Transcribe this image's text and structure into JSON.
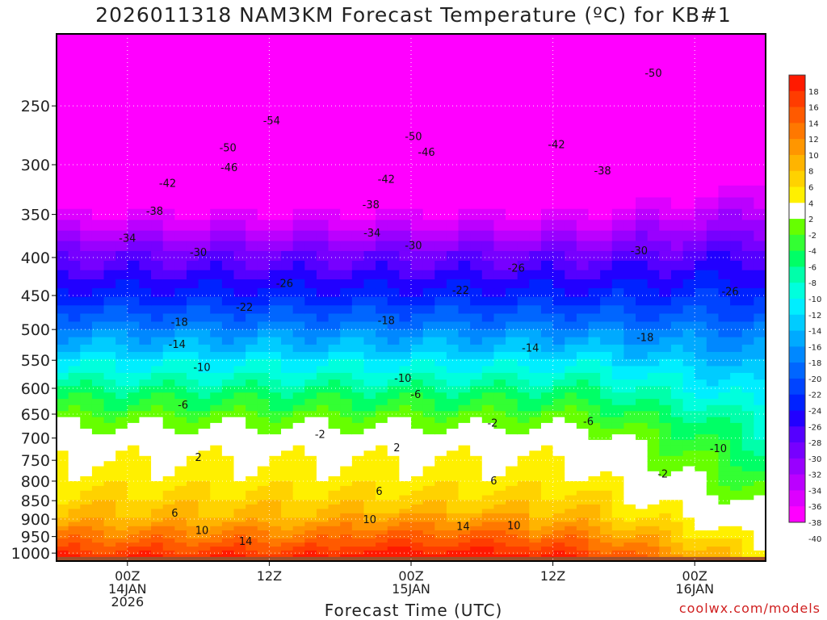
{
  "title": "2026011318 NAM3KM Forecast Temperature (ºC) for KB#1",
  "xaxis_title": "Forecast Time (UTC)",
  "credit": "coolwx.com/models",
  "chart_data": {
    "type": "heatmap",
    "title": "2026011318 NAM3KM Forecast Temperature (ºC) for KB#1",
    "xlabel": "Forecast Time (UTC)",
    "ylabel": "",
    "x_range_hours": [
      0,
      60
    ],
    "y_scale": "log-pressure",
    "ylim": [
      1025,
      200
    ],
    "x_ticks": [
      {
        "hour": 6,
        "lines": [
          "00Z",
          "14JAN",
          "2026"
        ]
      },
      {
        "hour": 18,
        "lines": [
          "12Z"
        ]
      },
      {
        "hour": 30,
        "lines": [
          "00Z",
          "15JAN"
        ]
      },
      {
        "hour": 42,
        "lines": [
          "12Z"
        ]
      },
      {
        "hour": 54,
        "lines": [
          "00Z",
          "16JAN"
        ]
      }
    ],
    "y_ticks": [
      250,
      300,
      350,
      400,
      450,
      500,
      550,
      600,
      650,
      700,
      750,
      800,
      850,
      900,
      950,
      1000
    ],
    "grid": true,
    "colorbar_labels": [
      18,
      16,
      14,
      12,
      10,
      8,
      6,
      4,
      2,
      -2,
      -4,
      -6,
      -8,
      -10,
      -12,
      -14,
      -16,
      -18,
      -20,
      -22,
      -24,
      -26,
      -28,
      -30,
      -32,
      -34,
      -36,
      -38,
      -40
    ],
    "colorbar_colors": [
      "#ff1a00",
      "#ff3c00",
      "#ff5a00",
      "#ff7800",
      "#ff9600",
      "#ffb400",
      "#ffd200",
      "#fff000",
      "#ffffff",
      "#66ff00",
      "#33ff33",
      "#00ff66",
      "#00ffaa",
      "#00ffdd",
      "#00eeff",
      "#00ccff",
      "#00aaff",
      "#0088ff",
      "#0066ff",
      "#0044ff",
      "#0022ff",
      "#2200ff",
      "#5500ff",
      "#7700ff",
      "#9900ff",
      "#bb00ff",
      "#dd00ff",
      "#ff00ff"
    ],
    "freezing_line_color": "#e0207a",
    "ground_color": "#a0522d",
    "level_temperature_profile": {
      "pressures": [
        200,
        250,
        300,
        350,
        400,
        450,
        500,
        550,
        600,
        650,
        700,
        750,
        800,
        850,
        900,
        950,
        1000
      ],
      "temperature_initial": [
        -57,
        -53,
        -47,
        -38,
        -30,
        -25,
        -19,
        -13,
        -8,
        -4,
        0,
        2,
        3,
        5,
        7,
        11,
        15
      ],
      "temperature_final": [
        -52,
        -47,
        -40,
        -34,
        -28,
        -24,
        -20,
        -17,
        -14,
        -11,
        -9,
        -7,
        -5,
        -3,
        -1,
        1,
        3
      ]
    },
    "contour_labels": [
      {
        "value": "-54",
        "hour": 18.2,
        "p": 262
      },
      {
        "value": "-50",
        "hour": 14.5,
        "p": 285
      },
      {
        "value": "-50",
        "hour": 30.2,
        "p": 275
      },
      {
        "value": "-50",
        "hour": 50.5,
        "p": 226
      },
      {
        "value": "-46",
        "hour": 14.6,
        "p": 303
      },
      {
        "value": "-46",
        "hour": 31.3,
        "p": 289
      },
      {
        "value": "-42",
        "hour": 9.4,
        "p": 318
      },
      {
        "value": "-42",
        "hour": 27.9,
        "p": 314
      },
      {
        "value": "-42",
        "hour": 42.3,
        "p": 282
      },
      {
        "value": "-38",
        "hour": 8.3,
        "p": 347
      },
      {
        "value": "-38",
        "hour": 26.6,
        "p": 340
      },
      {
        "value": "-38",
        "hour": 46.2,
        "p": 306
      },
      {
        "value": "-34",
        "hour": 6.0,
        "p": 377
      },
      {
        "value": "-34",
        "hour": 26.7,
        "p": 371
      },
      {
        "value": "-30",
        "hour": 12.0,
        "p": 394
      },
      {
        "value": "-30",
        "hour": 30.2,
        "p": 386
      },
      {
        "value": "-30",
        "hour": 49.3,
        "p": 392
      },
      {
        "value": "-26",
        "hour": 19.3,
        "p": 434
      },
      {
        "value": "-26",
        "hour": 38.9,
        "p": 414
      },
      {
        "value": "-26",
        "hour": 57.0,
        "p": 445
      },
      {
        "value": "-22",
        "hour": 15.9,
        "p": 467
      },
      {
        "value": "-22",
        "hour": 34.2,
        "p": 443
      },
      {
        "value": "-18",
        "hour": 10.4,
        "p": 489
      },
      {
        "value": "-18",
        "hour": 27.9,
        "p": 487
      },
      {
        "value": "-18",
        "hour": 49.8,
        "p": 513
      },
      {
        "value": "-14",
        "hour": 10.2,
        "p": 524
      },
      {
        "value": "-14",
        "hour": 40.1,
        "p": 530
      },
      {
        "value": "-10",
        "hour": 12.3,
        "p": 563
      },
      {
        "value": "-10",
        "hour": 29.3,
        "p": 582
      },
      {
        "value": "-10",
        "hour": 56.0,
        "p": 724
      },
      {
        "value": "-6",
        "hour": 10.7,
        "p": 632
      },
      {
        "value": "-6",
        "hour": 30.4,
        "p": 612
      },
      {
        "value": "-6",
        "hour": 45.0,
        "p": 666
      },
      {
        "value": "-2",
        "hour": 22.3,
        "p": 693
      },
      {
        "value": "-2",
        "hour": 36.9,
        "p": 669
      },
      {
        "value": "-2",
        "hour": 51.3,
        "p": 783
      },
      {
        "value": "2",
        "hour": 12.0,
        "p": 744
      },
      {
        "value": "2",
        "hour": 28.8,
        "p": 722
      },
      {
        "value": "6",
        "hour": 10.0,
        "p": 884
      },
      {
        "value": "6",
        "hour": 27.3,
        "p": 827
      },
      {
        "value": "6",
        "hour": 37.0,
        "p": 800
      },
      {
        "value": "10",
        "hour": 12.3,
        "p": 933
      },
      {
        "value": "10",
        "hour": 26.5,
        "p": 902
      },
      {
        "value": "10",
        "hour": 38.7,
        "p": 919
      },
      {
        "value": "14",
        "hour": 16.0,
        "p": 965
      },
      {
        "value": "14",
        "hour": 34.4,
        "p": 922
      }
    ]
  }
}
